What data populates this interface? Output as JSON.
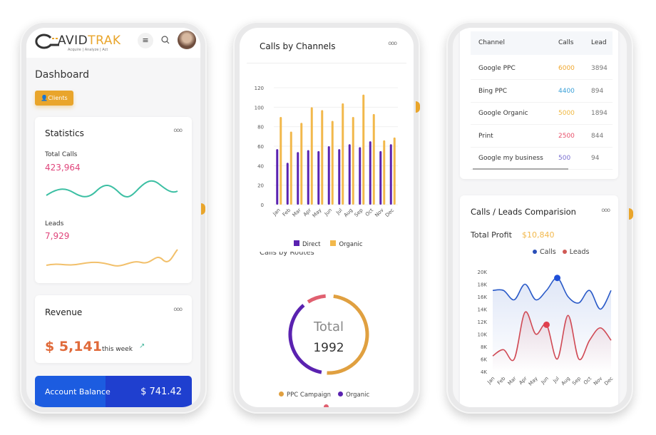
{
  "brand": {
    "logo_text_a": "AVID",
    "logo_text_b": "TRAK",
    "tagline": "Acquire | Analyze | Act"
  },
  "header": {
    "menu_icon": "hamburger-icon",
    "search_icon": "search-icon",
    "avatar": "user-avatar"
  },
  "dashboard": {
    "title": "Dashboard",
    "clients_button": "Clients"
  },
  "statistics": {
    "title": "Statistics",
    "total_calls_label": "Total Calls",
    "total_calls_value": "423,964",
    "leads_label": "Leads",
    "leads_value": "7,929"
  },
  "revenue": {
    "title": "Revenue",
    "value": "$ 5,141",
    "period": "this week"
  },
  "account_balance": {
    "label": "Account Balance",
    "value": "$ 741.42"
  },
  "channels_card": {
    "title": "Calls by Channels"
  },
  "routes_card": {
    "title": "Calls by Routes",
    "center_label": "Total",
    "center_value": "1992"
  },
  "table": {
    "headers": [
      "Channel",
      "Calls",
      "Lead"
    ],
    "rows": [
      {
        "channel": "Google PPC",
        "calls": "6000",
        "lead": "3894",
        "color": "#f0a830"
      },
      {
        "channel": "Bing PPC",
        "calls": "4400",
        "lead": "894",
        "color": "#3aa0d8"
      },
      {
        "channel": "Google Organic",
        "calls": "5000",
        "lead": "1894",
        "color": "#f0b840"
      },
      {
        "channel": "Print",
        "calls": "2500",
        "lead": "844",
        "color": "#e8506a"
      },
      {
        "channel": "Google my business",
        "calls": "500",
        "lead": "94",
        "color": "#7a6fd0"
      }
    ]
  },
  "comparison": {
    "title": "Calls / Leads Comparision",
    "profit_label": "Total Profit",
    "profit_value": "$10,840"
  },
  "colors": {
    "accent": "#e9a52b",
    "pink": "#e0457b",
    "blue": "#1f4fd8",
    "purple": "#5a22b0",
    "orange": "#f2b84b"
  },
  "chart_data": [
    {
      "type": "bar",
      "title": "Calls by Channels",
      "categories": [
        "Jan",
        "Feb",
        "Mar",
        "Apr",
        "May",
        "Jun",
        "Jul",
        "Aug",
        "Sep",
        "Oct",
        "Nov",
        "Dec"
      ],
      "ylim": [
        0,
        120
      ],
      "yticks": [
        0,
        20,
        40,
        60,
        80,
        100,
        120
      ],
      "grid": true,
      "legend": "bottom",
      "series": [
        {
          "name": "Direct",
          "color": "#5a22b0",
          "values": [
            57,
            43,
            54,
            56,
            55,
            60,
            57,
            62,
            59,
            65,
            55,
            62
          ]
        },
        {
          "name": "Organic",
          "color": "#f2b84b",
          "values": [
            90,
            75,
            84,
            100,
            97,
            86,
            104,
            90,
            113,
            93,
            66,
            69
          ]
        }
      ]
    },
    {
      "type": "pie",
      "title": "Calls by Routes",
      "legend": "bottom",
      "series": [
        {
          "name": "PPC Campaign",
          "color": "#e0a040",
          "share": 0.5
        },
        {
          "name": "Organic",
          "color": "#5a22b0",
          "share": 0.37
        },
        {
          "name": "",
          "color": "#e06070",
          "share": 0.09
        }
      ]
    },
    {
      "type": "line",
      "title": "Calls / Leads Comparision",
      "categories": [
        "Jan",
        "Feb",
        "Mar",
        "Apr",
        "May",
        "Jun",
        "Jul",
        "Aug",
        "Sep",
        "Oct",
        "Nov",
        "Dec"
      ],
      "ylim": [
        4000,
        20000
      ],
      "yticks": [
        "4K",
        "6K",
        "8K",
        "10K",
        "12K",
        "14K",
        "16K",
        "18K",
        "20K"
      ],
      "legend": "top-right",
      "series": [
        {
          "name": "Calls",
          "color": "#2a5ac8",
          "values": [
            17000,
            17000,
            15500,
            18000,
            15500,
            17000,
            19000,
            16000,
            15000,
            17000,
            14000,
            17000
          ],
          "highlight": "Jul"
        },
        {
          "name": "Leads",
          "color": "#d04a55",
          "values": [
            6500,
            7500,
            6000,
            13500,
            10000,
            11500,
            6000,
            13000,
            6000,
            9000,
            11000,
            9000
          ],
          "highlight": "Jun"
        }
      ]
    }
  ]
}
